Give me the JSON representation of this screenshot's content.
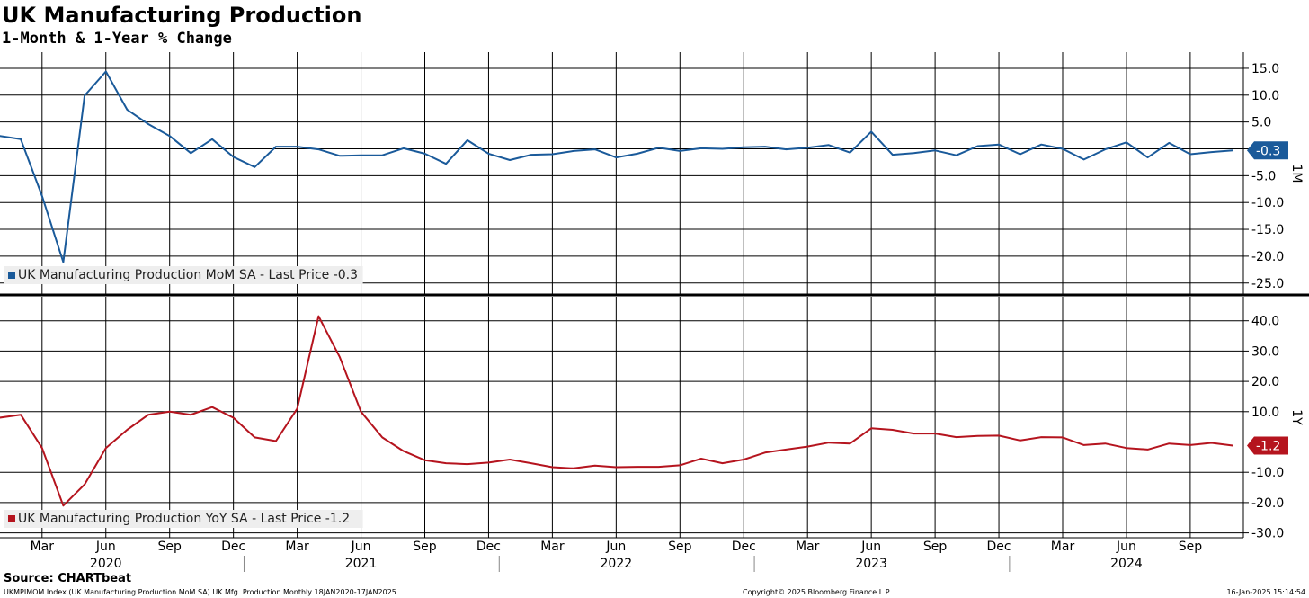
{
  "header": {
    "title": "UK Manufacturing Production",
    "subtitle": "1-Month & 1-Year % Change"
  },
  "footer": {
    "source": "Source: CHARTbeat",
    "left": "UKMPIMOM Index (UK Manufacturing Production MoM SA) UK Mfg. Production  Monthly 18JAN2020-17JAN2025",
    "center": "Copyright© 2025 Bloomberg Finance L.P.",
    "right": "16-Jan-2025 15:14:54"
  },
  "colors": {
    "mom_series": "#1a5a9a",
    "yoy_series": "#b5141e",
    "grid": "#000000",
    "legend_bg": "#eeeeee"
  },
  "chart_data": [
    {
      "type": "line",
      "panel_label": "1M",
      "x_start": "2020-01",
      "x_end": "2024-11",
      "ylim": [
        -27,
        17
      ],
      "yticks": [
        "15.0",
        "10.0",
        "5.0",
        "0.0",
        "-5.0",
        "-10.0",
        "-15.0",
        "-20.0",
        "-25.0"
      ],
      "ytick_values": [
        15,
        10,
        5,
        0,
        -5,
        -10,
        -15,
        -20,
        -25
      ],
      "grid": true,
      "legend_position": "bottom-left",
      "last_label": "-0.3",
      "series": [
        {
          "name": "UK Manufacturing Production MoM SA - Last Price -0.3",
          "color": "#1a5a9a",
          "values": [
            2.4,
            1.8,
            -8.8,
            -21.1,
            9.9,
            14.4,
            7.3,
            4.6,
            2.4,
            -0.8,
            1.8,
            -1.5,
            -3.4,
            0.4,
            0.4,
            -0.1,
            -1.3,
            -1.2,
            -1.2,
            0.1,
            -0.9,
            -2.8,
            1.6,
            -0.9,
            -2.1,
            -1.1,
            -1.0,
            -0.4,
            -0.1,
            -1.6,
            -0.9,
            0.2,
            -0.4,
            0.1,
            0.0,
            0.3,
            0.4,
            -0.1,
            0.2,
            0.7,
            -0.7,
            3.2,
            -1.1,
            -0.8,
            -0.3,
            -1.2,
            0.5,
            0.8,
            -1.0,
            0.8,
            0.0,
            -2.0,
            -0.1,
            1.2,
            -1.6,
            1.1,
            -1.0,
            -0.6,
            -0.3
          ]
        }
      ]
    },
    {
      "type": "line",
      "panel_label": "1Y",
      "x_start": "2020-01",
      "x_end": "2024-11",
      "ylim": [
        -30,
        45
      ],
      "yticks": [
        "40.0",
        "30.0",
        "20.0",
        "10.0",
        "0.0",
        "-10.0",
        "-20.0",
        "-30.0"
      ],
      "ytick_values": [
        40,
        30,
        20,
        10,
        0,
        -10,
        -20,
        -30
      ],
      "grid": true,
      "legend_position": "bottom-left",
      "last_label": "-1.2",
      "series": [
        {
          "name": "UK Manufacturing Production YoY SA - Last Price -1.2",
          "color": "#b5141e",
          "values": [
            8.0,
            9.0,
            -2.0,
            -21.0,
            -14.0,
            -2.0,
            4.0,
            9.0,
            10.0,
            9.0,
            11.5,
            8.0,
            1.5,
            0.3,
            11.0,
            41.5,
            28.0,
            10.0,
            1.5,
            -3.0,
            -6.0,
            -7.0,
            -7.3,
            -6.8,
            -5.8,
            -7.0,
            -8.3,
            -8.7,
            -7.8,
            -8.3,
            -8.2,
            -8.2,
            -7.7,
            -5.5,
            -7.0,
            -5.8,
            -3.5,
            -2.5,
            -1.5,
            -0.2,
            -0.5,
            4.5,
            4.0,
            2.8,
            2.8,
            1.6,
            2.0,
            2.1,
            0.5,
            1.6,
            1.5,
            -1.0,
            -0.5,
            -2.0,
            -2.5,
            -0.5,
            -1.0,
            -0.3,
            -1.2
          ]
        }
      ]
    }
  ],
  "x_axis": {
    "month_labels": [
      "Mar",
      "Jun",
      "Sep",
      "Dec",
      "Mar",
      "Jun",
      "Sep",
      "Dec",
      "Mar",
      "Jun",
      "Sep",
      "Dec",
      "Mar",
      "Jun",
      "Sep",
      "Dec",
      "Mar",
      "Jun",
      "Sep"
    ],
    "year_labels": [
      "2020",
      "2021",
      "2022",
      "2023",
      "2024"
    ]
  }
}
